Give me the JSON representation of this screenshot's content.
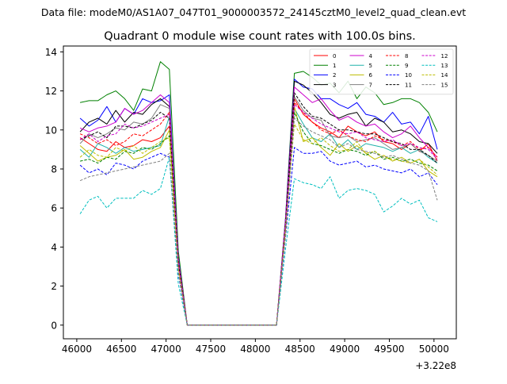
{
  "suptitle": "Data file: modeM0/AS1A07_047T01_9000003572_24145cztM0_level2_quad_clean.evt",
  "chart_data": {
    "type": "line",
    "title": "Quadrant 0 module wise count rates with 100.0s bins.",
    "xlabel": "",
    "ylabel": "",
    "x_offset_label": "+3.22e8",
    "xlim": [
      45850,
      50250
    ],
    "ylim": [
      -0.7,
      14.3
    ],
    "xticks": [
      46000,
      46500,
      47000,
      47500,
      48000,
      48500,
      49000,
      49500,
      50000
    ],
    "xtick_labels": [
      "46000",
      "46500",
      "47000",
      "47500",
      "48000",
      "48500",
      "49000",
      "49500",
      "50000"
    ],
    "yticks": [
      0,
      2,
      4,
      6,
      8,
      10,
      12,
      14
    ],
    "ytick_labels": [
      "0",
      "2",
      "4",
      "6",
      "8",
      "10",
      "12",
      "14"
    ],
    "grid": false,
    "legend": "top-right",
    "legend_columns": 4,
    "x": [
      46037,
      46137,
      46237,
      46337,
      46437,
      46537,
      46637,
      46737,
      46837,
      46937,
      47037,
      47137,
      47237,
      47337,
      47437,
      47537,
      47637,
      47737,
      47837,
      47937,
      48037,
      48137,
      48237,
      48337,
      48437,
      48537,
      48637,
      48737,
      48837,
      48937,
      49037,
      49137,
      49237,
      49337,
      49437,
      49537,
      49637,
      49737,
      49837,
      49937,
      50037
    ],
    "series": [
      {
        "name": "0",
        "color": "#ff0000",
        "dash": false,
        "values": [
          9.6,
          9.3,
          9.0,
          8.9,
          9.4,
          9.1,
          9.2,
          9.5,
          9.4,
          9.6,
          10.2,
          3.2,
          0,
          0,
          0,
          0,
          0,
          0,
          0,
          0,
          0,
          0,
          0,
          5.0,
          11.6,
          10.8,
          10.4,
          10.1,
          9.9,
          9.6,
          10.2,
          9.9,
          9.7,
          9.9,
          9.4,
          9.3,
          9.0,
          9.3,
          8.9,
          9.3,
          8.4
        ]
      },
      {
        "name": "1",
        "color": "#008000",
        "dash": false,
        "values": [
          11.4,
          11.5,
          11.5,
          11.8,
          12.0,
          11.6,
          11.0,
          12.1,
          12.0,
          13.5,
          13.1,
          3.8,
          0,
          0,
          0,
          0,
          0,
          0,
          0,
          0,
          0,
          0,
          0,
          5.5,
          12.9,
          13.0,
          12.7,
          12.3,
          12.4,
          11.9,
          12.5,
          11.6,
          12.2,
          11.9,
          11.3,
          11.4,
          11.6,
          11.6,
          11.4,
          10.9,
          9.9
        ]
      },
      {
        "name": "2",
        "color": "#0000ff",
        "dash": false,
        "values": [
          10.6,
          10.2,
          10.5,
          11.2,
          10.4,
          11.1,
          10.8,
          11.6,
          11.4,
          11.5,
          11.8,
          3.5,
          0,
          0,
          0,
          0,
          0,
          0,
          0,
          0,
          0,
          0,
          0,
          5.4,
          12.6,
          12.2,
          12.1,
          11.6,
          11.6,
          11.3,
          11.1,
          11.4,
          10.8,
          10.7,
          10.4,
          10.9,
          10.3,
          10.4,
          9.8,
          10.7,
          9.0
        ]
      },
      {
        "name": "3",
        "color": "#000000",
        "dash": false,
        "values": [
          9.9,
          10.4,
          10.6,
          10.3,
          11.0,
          10.4,
          10.9,
          10.8,
          11.3,
          11.6,
          11.2,
          3.3,
          0,
          0,
          0,
          0,
          0,
          0,
          0,
          0,
          0,
          0,
          0,
          5.3,
          12.5,
          12.3,
          11.9,
          11.4,
          10.8,
          10.6,
          10.8,
          10.9,
          10.2,
          10.6,
          10.4,
          9.9,
          10.0,
          9.8,
          9.4,
          9.3,
          8.8
        ]
      },
      {
        "name": "4",
        "color": "#cc00cc",
        "dash": false,
        "values": [
          10.1,
          9.9,
          10.1,
          10.2,
          10.4,
          11.1,
          10.8,
          11.0,
          11.4,
          11.8,
          11.4,
          3.4,
          0,
          0,
          0,
          0,
          0,
          0,
          0,
          0,
          0,
          0,
          0,
          5.4,
          12.2,
          11.8,
          11.4,
          11.6,
          11.0,
          10.5,
          10.7,
          10.4,
          10.2,
          10.3,
          9.9,
          9.6,
          9.8,
          10.2,
          9.6,
          9.1,
          8.6
        ]
      },
      {
        "name": "5",
        "color": "#20b2aa",
        "dash": false,
        "values": [
          9.0,
          8.6,
          9.3,
          9.1,
          8.8,
          9.1,
          8.9,
          9.0,
          9.1,
          9.2,
          10.7,
          3.1,
          0,
          0,
          0,
          0,
          0,
          0,
          0,
          0,
          0,
          0,
          0,
          5.0,
          11.1,
          10.3,
          9.6,
          9.4,
          9.8,
          9.1,
          9.5,
          9.0,
          9.3,
          9.2,
          9.1,
          8.9,
          9.1,
          8.8,
          9.0,
          8.6,
          8.3
        ]
      },
      {
        "name": "6",
        "color": "#bdbd00",
        "dash": false,
        "values": [
          9.2,
          8.8,
          8.4,
          8.6,
          8.7,
          9.0,
          8.5,
          8.6,
          8.9,
          9.1,
          10.0,
          3.0,
          0,
          0,
          0,
          0,
          0,
          0,
          0,
          0,
          0,
          0,
          0,
          4.9,
          11.2,
          9.4,
          9.6,
          9.1,
          8.7,
          9.3,
          8.9,
          9.2,
          8.8,
          8.5,
          8.7,
          8.4,
          8.6,
          8.3,
          8.5,
          7.9,
          7.6
        ]
      },
      {
        "name": "7",
        "color": "#808080",
        "dash": false,
        "values": [
          9.3,
          9.8,
          9.6,
          9.8,
          10.1,
          10.0,
          10.4,
          10.3,
          10.6,
          11.3,
          11.1,
          3.3,
          0,
          0,
          0,
          0,
          0,
          0,
          0,
          0,
          0,
          0,
          0,
          5.2,
          11.7,
          11.0,
          10.6,
          10.5,
          9.7,
          9.6,
          9.7,
          9.4,
          9.5,
          9.6,
          9.3,
          9.0,
          9.1,
          9.3,
          8.9,
          8.7,
          8.4
        ]
      },
      {
        "name": "8",
        "color": "#ff0000",
        "dash": true,
        "values": [
          9.8,
          9.6,
          9.3,
          9.5,
          9.2,
          9.4,
          9.8,
          9.7,
          10.0,
          10.3,
          10.9,
          3.3,
          0,
          0,
          0,
          0,
          0,
          0,
          0,
          0,
          0,
          0,
          0,
          5.1,
          11.4,
          10.9,
          10.4,
          10.0,
          9.8,
          10.0,
          9.7,
          9.5,
          9.4,
          9.7,
          9.5,
          9.4,
          9.2,
          9.4,
          9.0,
          9.1,
          8.6
        ]
      },
      {
        "name": "9",
        "color": "#008000",
        "dash": true,
        "values": [
          8.4,
          8.5,
          8.3,
          8.6,
          8.5,
          8.9,
          8.8,
          9.1,
          9.0,
          9.3,
          9.7,
          2.9,
          0,
          0,
          0,
          0,
          0,
          0,
          0,
          0,
          0,
          0,
          0,
          4.8,
          10.9,
          9.9,
          9.3,
          9.2,
          9.0,
          8.8,
          9.0,
          8.9,
          8.7,
          8.9,
          8.5,
          8.6,
          8.4,
          8.5,
          8.3,
          8.2,
          7.9
        ]
      },
      {
        "name": "10",
        "color": "#0000ff",
        "dash": true,
        "values": [
          8.2,
          7.8,
          8.0,
          7.7,
          8.3,
          8.2,
          8.0,
          8.4,
          8.6,
          8.8,
          8.6,
          2.6,
          0,
          0,
          0,
          0,
          0,
          0,
          0,
          0,
          0,
          0,
          0,
          4.5,
          9.1,
          8.8,
          8.8,
          8.9,
          8.4,
          8.2,
          8.3,
          8.4,
          8.1,
          8.2,
          8.0,
          7.9,
          7.8,
          8.0,
          7.6,
          7.8,
          7.2
        ]
      },
      {
        "name": "11",
        "color": "#000000",
        "dash": true,
        "values": [
          9.5,
          9.7,
          9.9,
          9.6,
          10.2,
          10.2,
          10.1,
          10.3,
          10.5,
          10.9,
          10.6,
          3.2,
          0,
          0,
          0,
          0,
          0,
          0,
          0,
          0,
          0,
          0,
          0,
          5.2,
          11.9,
          11.2,
          10.7,
          10.6,
          10.3,
          10.0,
          10.0,
          9.9,
          9.8,
          9.8,
          9.6,
          9.4,
          9.3,
          9.0,
          9.0,
          8.7,
          8.3
        ]
      },
      {
        "name": "12",
        "color": "#cc00cc",
        "dash": true,
        "values": [
          9.5,
          9.8,
          9.4,
          9.7,
          9.8,
          10.3,
          10.1,
          10.2,
          10.4,
          10.6,
          10.8,
          3.2,
          0,
          0,
          0,
          0,
          0,
          0,
          0,
          0,
          0,
          0,
          0,
          5.2,
          11.3,
          10.9,
          10.6,
          10.3,
          10.1,
          9.9,
          9.8,
          9.9,
          9.6,
          9.5,
          9.4,
          9.5,
          9.2,
          9.3,
          9.1,
          9.0,
          8.5
        ]
      },
      {
        "name": "13",
        "color": "#00bfbf",
        "dash": true,
        "values": [
          5.7,
          6.4,
          6.6,
          6.0,
          6.5,
          6.5,
          6.5,
          6.9,
          6.7,
          7.0,
          8.6,
          2.1,
          0,
          0,
          0,
          0,
          0,
          0,
          0,
          0,
          0,
          0,
          0,
          3.9,
          7.5,
          7.3,
          7.2,
          7.0,
          7.6,
          6.5,
          6.9,
          7.0,
          6.9,
          6.7,
          5.8,
          6.1,
          6.5,
          6.2,
          6.4,
          5.5,
          5.3
        ]
      },
      {
        "name": "14",
        "color": "#bdbd00",
        "dash": true,
        "values": [
          8.6,
          9.0,
          8.7,
          8.6,
          9.1,
          8.9,
          9.2,
          8.8,
          9.1,
          9.4,
          9.6,
          2.9,
          0,
          0,
          0,
          0,
          0,
          0,
          0,
          0,
          0,
          0,
          0,
          4.9,
          10.3,
          9.5,
          9.3,
          9.6,
          9.2,
          8.9,
          9.0,
          9.4,
          8.8,
          8.9,
          8.6,
          8.5,
          8.4,
          8.3,
          8.5,
          8.1,
          7.7
        ]
      },
      {
        "name": "15",
        "color": "#808080",
        "dash": true,
        "values": [
          7.4,
          7.6,
          7.7,
          7.8,
          7.9,
          8.0,
          8.1,
          8.2,
          8.3,
          8.4,
          8.8,
          2.7,
          0,
          0,
          0,
          0,
          0,
          0,
          0,
          0,
          0,
          0,
          0,
          4.6,
          10.6,
          10.2,
          9.9,
          9.7,
          9.5,
          9.1,
          9.3,
          9.0,
          8.9,
          8.8,
          8.6,
          8.7,
          8.5,
          8.3,
          8.2,
          7.9,
          6.4
        ]
      }
    ]
  }
}
